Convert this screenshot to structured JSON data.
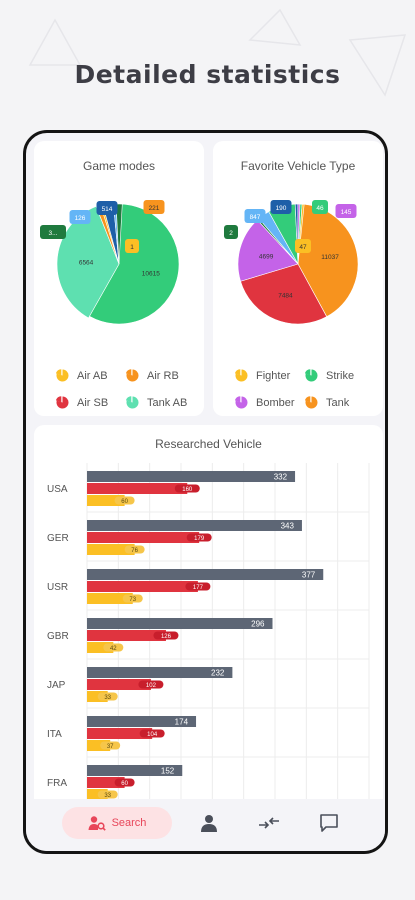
{
  "headline": "Detailed statistics",
  "colors": {
    "yellow": "#fbbf24",
    "orange": "#f7931e",
    "red": "#e0343f",
    "teal": "#5ee0b0",
    "green": "#33cc7a",
    "darkgreen": "#1f7a3e",
    "purple": "#c463e8",
    "lightblue": "#64b5f6",
    "darkblue": "#1e5fa8",
    "gray": "#5d6675",
    "accent": "#e8465a"
  },
  "game_modes": {
    "title": "Game modes",
    "legend": [
      {
        "label": "Air AB",
        "icon": "pie-icon-yellow",
        "color": "#fbbf24"
      },
      {
        "label": "Air RB",
        "icon": "pie-icon-orange",
        "color": "#f7931e"
      },
      {
        "label": "Air SB",
        "icon": "pie-icon-red",
        "color": "#e0343f"
      },
      {
        "label": "Tank AB",
        "icon": "pie-icon-teal",
        "color": "#5ee0b0"
      }
    ]
  },
  "vehicle_type": {
    "title": "Favorite Vehicle Type",
    "legend": [
      {
        "label": "Fighter",
        "icon": "pie-icon-yellow",
        "color": "#fbbf24"
      },
      {
        "label": "Strike",
        "icon": "pie-icon-green",
        "color": "#33cc7a"
      },
      {
        "label": "Bomber",
        "icon": "pie-icon-purple",
        "color": "#c463e8"
      },
      {
        "label": "Tank",
        "icon": "pie-icon-orange",
        "color": "#f7931e"
      }
    ]
  },
  "researched": {
    "title": "Researched Vehicle"
  },
  "nav": {
    "search_label": "Search",
    "items": [
      "search-icon",
      "profile-icon",
      "compare-icon",
      "chat-icon"
    ]
  },
  "chart_data": [
    {
      "type": "pie",
      "title": "Game modes",
      "slices": [
        {
          "value": 10615,
          "color": "#33cc7a",
          "label": "10615"
        },
        {
          "value": 6564,
          "color": "#5ee0b0",
          "label": "6564"
        },
        {
          "value": 221,
          "color": "#f7931e",
          "label": "221"
        },
        {
          "value": 1,
          "color": "#fbbf24",
          "label": "1"
        },
        {
          "value": 514,
          "color": "#1e5fa8",
          "label": "514"
        },
        {
          "value": 126,
          "color": "#64b5f6",
          "label": "126"
        },
        {
          "value": 300,
          "color": "#1f7a3e",
          "label": "3..."
        }
      ]
    },
    {
      "type": "pie",
      "title": "Favorite Vehicle Type",
      "slices": [
        {
          "value": 11037,
          "color": "#f7931e",
          "label": "11037"
        },
        {
          "value": 7484,
          "color": "#e0343f",
          "label": "7484"
        },
        {
          "value": 4699,
          "color": "#c463e8",
          "label": "4699"
        },
        {
          "value": 2,
          "color": "#1f7a3e",
          "label": "2"
        },
        {
          "value": 847,
          "color": "#64b5f6",
          "label": "847"
        },
        {
          "value": 1944,
          "color": "#33cc7a",
          "label": ""
        },
        {
          "value": 190,
          "color": "#1e5fa8",
          "label": "190"
        },
        {
          "value": 145,
          "color": "#c463e8",
          "label": "145"
        },
        {
          "value": 46,
          "color": "#33cc7a",
          "label": "46"
        },
        {
          "value": 47,
          "color": "#fbbf24",
          "label": "47"
        }
      ]
    },
    {
      "type": "bar",
      "title": "Researched Vehicle",
      "categories": [
        "USA",
        "GER",
        "USR",
        "GBR",
        "JAP",
        "ITA",
        "FRA"
      ],
      "xlim": [
        0,
        450
      ],
      "series": [
        {
          "color": "#5d6675",
          "values": [
            332,
            343,
            377,
            296,
            232,
            174,
            152
          ]
        },
        {
          "color": "#e0343f",
          "values": [
            160,
            179,
            177,
            126,
            102,
            104,
            60
          ]
        },
        {
          "color": "#fbbf24",
          "values": [
            60,
            76,
            73,
            42,
            33,
            37,
            33
          ]
        }
      ]
    }
  ]
}
